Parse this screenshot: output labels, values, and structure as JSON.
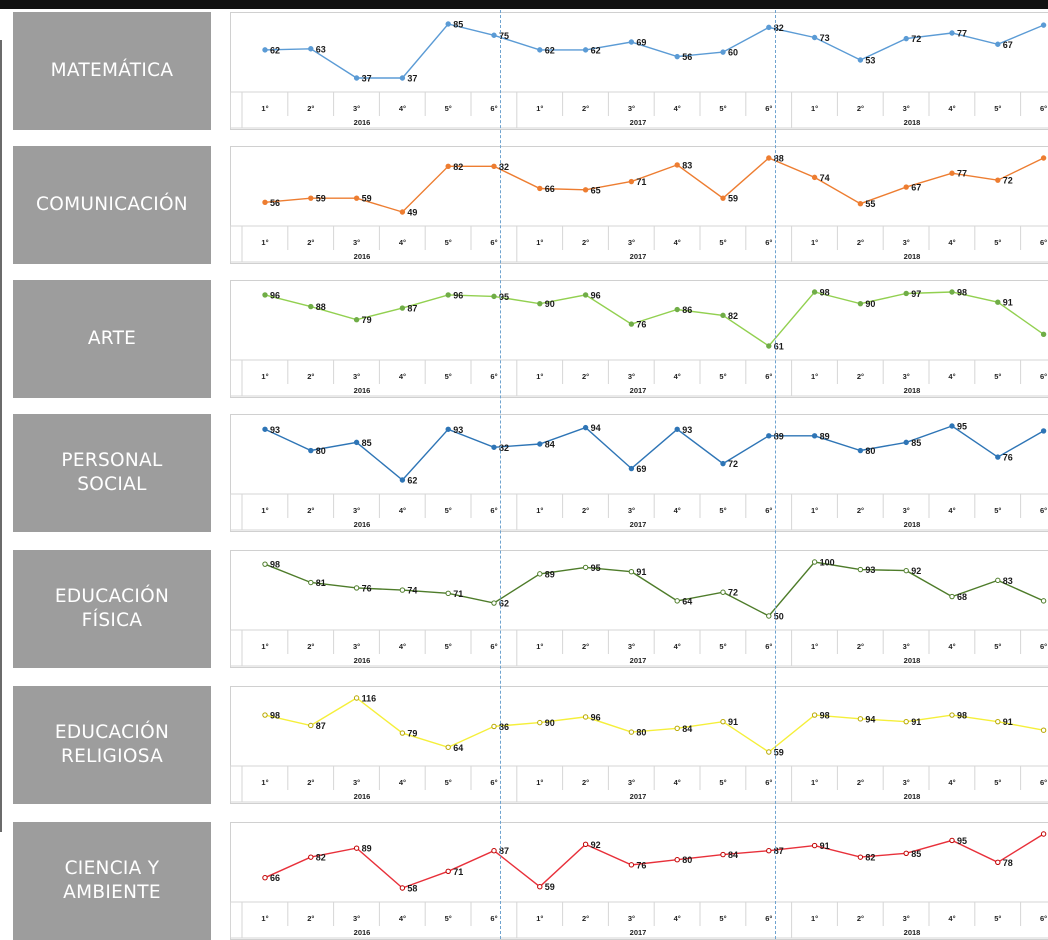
{
  "chart_data": [
    {
      "type": "line",
      "label": "MATEMÁTICA",
      "color": "#5b9bd5",
      "marker": "#5b9bd5",
      "categories": [
        "1°",
        "2°",
        "3°",
        "4°",
        "5°",
        "6°",
        "1°",
        "2°",
        "3°",
        "4°",
        "5°",
        "6°",
        "1°",
        "2°",
        "3°",
        "4°",
        "5°",
        "6°"
      ],
      "groups": [
        "2016",
        "2017",
        "2018"
      ],
      "values": [
        62,
        63,
        37,
        37,
        85,
        75,
        62,
        62,
        69,
        56,
        60,
        82,
        73,
        53,
        72,
        77,
        67,
        84
      ]
    },
    {
      "type": "line",
      "label": "COMUNICACIÓN",
      "color": "#ed7d31",
      "marker": "#ed7d31",
      "categories": [
        "1°",
        "2°",
        "3°",
        "4°",
        "5°",
        "6°",
        "1°",
        "2°",
        "3°",
        "4°",
        "5°",
        "6°",
        "1°",
        "2°",
        "3°",
        "4°",
        "5°",
        "6°"
      ],
      "groups": [
        "2016",
        "2017",
        "2018"
      ],
      "values": [
        56,
        59,
        59,
        49,
        82,
        82,
        66,
        65,
        71,
        83,
        59,
        88,
        74,
        55,
        67,
        77,
        72,
        88
      ]
    },
    {
      "type": "line",
      "label": "ARTE",
      "color": "#92d050",
      "marker": "#70ad47",
      "categories": [
        "1°",
        "2°",
        "3°",
        "4°",
        "5°",
        "6°",
        "1°",
        "2°",
        "3°",
        "4°",
        "5°",
        "6°",
        "1°",
        "2°",
        "3°",
        "4°",
        "5°",
        "6°"
      ],
      "groups": [
        "2016",
        "2017",
        "2018"
      ],
      "values": [
        96,
        88,
        79,
        87,
        96,
        95,
        90,
        96,
        76,
        86,
        82,
        61,
        98,
        90,
        97,
        98,
        91,
        69
      ]
    },
    {
      "type": "line",
      "label": "PERSONAL\nSOCIAL",
      "color": "#2e75b6",
      "marker": "#2e75b6",
      "categories": [
        "1°",
        "2°",
        "3°",
        "4°",
        "5°",
        "6°",
        "1°",
        "2°",
        "3°",
        "4°",
        "5°",
        "6°",
        "1°",
        "2°",
        "3°",
        "4°",
        "5°",
        "6°"
      ],
      "groups": [
        "2016",
        "2017",
        "2018"
      ],
      "values": [
        93,
        80,
        85,
        62,
        93,
        82,
        84,
        94,
        69,
        93,
        72,
        89,
        89,
        80,
        85,
        95,
        76,
        92
      ]
    },
    {
      "type": "line",
      "label": "EDUCACIÓN\nFÍSICA",
      "color": "#4e7c2a",
      "marker": "#4e7c2a",
      "categories": [
        "1°",
        "2°",
        "3°",
        "4°",
        "5°",
        "6°",
        "1°",
        "2°",
        "3°",
        "4°",
        "5°",
        "6°",
        "1°",
        "2°",
        "3°",
        "4°",
        "5°",
        "6°"
      ],
      "groups": [
        "2016",
        "2017",
        "2018"
      ],
      "values": [
        98,
        81,
        76,
        74,
        71,
        62,
        89,
        95,
        91,
        64,
        72,
        50,
        100,
        93,
        92,
        68,
        83,
        64
      ]
    },
    {
      "type": "line",
      "label": "EDUCACIÓN\nRELIGIOSA",
      "color": "#f5ef3a",
      "marker": "#b8a800",
      "categories": [
        "1°",
        "2°",
        "3°",
        "4°",
        "5°",
        "6°",
        "1°",
        "2°",
        "3°",
        "4°",
        "5°",
        "6°",
        "1°",
        "2°",
        "3°",
        "4°",
        "5°",
        "6°"
      ],
      "groups": [
        "2016",
        "2017",
        "2018"
      ],
      "values": [
        98,
        87,
        116,
        79,
        64,
        86,
        90,
        96,
        80,
        84,
        91,
        59,
        98,
        94,
        91,
        98,
        91,
        82
      ]
    },
    {
      "type": "line",
      "label": "CIENCIA Y\nAMBIENTE",
      "color": "#e8303a",
      "marker": "#c00000",
      "categories": [
        "1°",
        "2°",
        "3°",
        "4°",
        "5°",
        "6°",
        "1°",
        "2°",
        "3°",
        "4°",
        "5°",
        "6°",
        "1°",
        "2°",
        "3°",
        "4°",
        "5°",
        "6°"
      ],
      "groups": [
        "2016",
        "2017",
        "2018"
      ],
      "values": [
        66,
        82,
        89,
        58,
        71,
        87,
        59,
        92,
        76,
        80,
        84,
        87,
        91,
        82,
        85,
        95,
        78,
        100
      ]
    }
  ]
}
